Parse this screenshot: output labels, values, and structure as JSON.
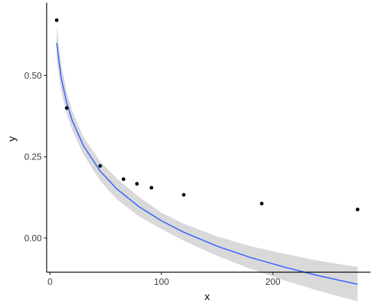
{
  "chart_data": {
    "type": "scatter",
    "xlabel": "x",
    "ylabel": "y",
    "xlim": [
      -3,
      285
    ],
    "ylim": [
      -0.105,
      0.715
    ],
    "x_ticks": [
      0,
      100,
      200
    ],
    "x_tick_labels": [
      "0",
      "100",
      "200"
    ],
    "y_ticks": [
      0.0,
      0.25,
      0.5
    ],
    "y_tick_labels": [
      "0.00",
      "0.25",
      "0.50"
    ],
    "grid": false,
    "legend": "none",
    "points": [
      {
        "x": 6,
        "y": 0.67
      },
      {
        "x": 15,
        "y": 0.4
      },
      {
        "x": 45,
        "y": 0.222
      },
      {
        "x": 66,
        "y": 0.181
      },
      {
        "x": 78,
        "y": 0.167
      },
      {
        "x": 91,
        "y": 0.155
      },
      {
        "x": 120,
        "y": 0.133
      },
      {
        "x": 190,
        "y": 0.106
      },
      {
        "x": 276,
        "y": 0.088
      }
    ],
    "fit": {
      "model": "log",
      "x": [
        6,
        10,
        15,
        20,
        30,
        45,
        60,
        80,
        100,
        120,
        150,
        180,
        210,
        240,
        276
      ],
      "y": [
        0.6,
        0.494,
        0.416,
        0.361,
        0.284,
        0.206,
        0.151,
        0.096,
        0.053,
        0.018,
        -0.025,
        -0.06,
        -0.089,
        -0.115,
        -0.142
      ],
      "ci_lower": [
        0.55,
        0.452,
        0.382,
        0.331,
        0.257,
        0.176,
        0.119,
        0.066,
        0.028,
        -0.008,
        -0.055,
        -0.095,
        -0.13,
        -0.161,
        -0.195
      ],
      "ci_upper": [
        0.65,
        0.536,
        0.45,
        0.391,
        0.311,
        0.236,
        0.183,
        0.126,
        0.078,
        0.044,
        0.005,
        -0.025,
        -0.048,
        -0.069,
        -0.089
      ]
    },
    "colors": {
      "points": "#000000",
      "fit_line": "#3366ff",
      "ci_band": "#d9d9d9",
      "axis": "#000000"
    }
  }
}
